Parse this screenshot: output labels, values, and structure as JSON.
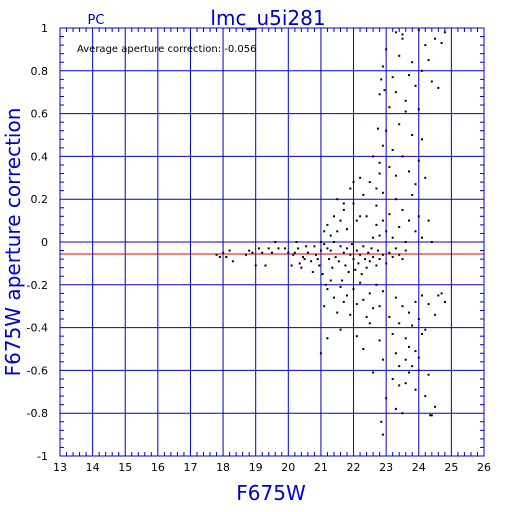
{
  "chart_data": {
    "type": "scatter",
    "title": "lmc_u5i281",
    "camera": "PC",
    "xlabel": "F675W",
    "ylabel": "F675W aperture correction",
    "annotation": "Average aperture correction: -0.056",
    "xlim": [
      13,
      26
    ],
    "ylim": [
      -1,
      1
    ],
    "xticks": [
      13,
      14,
      15,
      16,
      17,
      18,
      19,
      20,
      21,
      22,
      23,
      24,
      25,
      26
    ],
    "yticks": [
      -1,
      -0.8,
      -0.6,
      -0.4,
      -0.2,
      0,
      0.2,
      0.4,
      0.6,
      0.8,
      1
    ],
    "xtick_labels": [
      "13",
      "14",
      "15",
      "16",
      "17",
      "18",
      "19",
      "20",
      "21",
      "22",
      "23",
      "24",
      "25",
      "26"
    ],
    "ytick_labels": [
      "-1",
      "-0.8",
      "-0.6",
      "-0.4",
      "-0.2",
      "0",
      "0.2",
      "0.4",
      "0.6",
      "0.8",
      "1"
    ],
    "grid": true,
    "reference_line_y": -0.056,
    "colors": {
      "axes": "#0000cc",
      "points": "#000000",
      "reference_line": "#dd0000",
      "background": "#ffffff"
    },
    "points": [
      [
        17.8,
        -0.06
      ],
      [
        17.9,
        -0.07
      ],
      [
        18.0,
        -0.05
      ],
      [
        18.1,
        -0.07
      ],
      [
        18.3,
        -0.09
      ],
      [
        18.2,
        -0.04
      ],
      [
        18.7,
        -0.06
      ],
      [
        18.8,
        -0.04
      ],
      [
        18.9,
        -0.05
      ],
      [
        19.0,
        -0.11
      ],
      [
        19.1,
        -0.03
      ],
      [
        19.2,
        -0.05
      ],
      [
        19.3,
        -0.11
      ],
      [
        19.4,
        -0.03
      ],
      [
        19.5,
        -0.05
      ],
      [
        19.6,
        0.0
      ],
      [
        19.7,
        -0.03
      ],
      [
        19.9,
        -0.03
      ],
      [
        20.0,
        -0.05
      ],
      [
        20.1,
        -0.11
      ],
      [
        20.15,
        -0.06
      ],
      [
        20.2,
        -0.05
      ],
      [
        20.25,
        0.0
      ],
      [
        20.3,
        -0.03
      ],
      [
        20.35,
        -0.1
      ],
      [
        20.4,
        -0.12
      ],
      [
        20.45,
        -0.07
      ],
      [
        20.5,
        -0.08
      ],
      [
        20.55,
        -0.02
      ],
      [
        20.6,
        -0.05
      ],
      [
        20.7,
        -0.09
      ],
      [
        20.75,
        -0.14
      ],
      [
        20.8,
        -0.02
      ],
      [
        20.85,
        -0.06
      ],
      [
        20.9,
        -0.08
      ],
      [
        20.95,
        -0.11
      ],
      [
        21.0,
        -0.04
      ],
      [
        21.05,
        -0.15
      ],
      [
        21.1,
        -0.01
      ],
      [
        21.15,
        -0.2
      ],
      [
        21.2,
        -0.03
      ],
      [
        21.25,
        -0.08
      ],
      [
        21.3,
        -0.04
      ],
      [
        21.35,
        -0.12
      ],
      [
        21.4,
        0.0
      ],
      [
        21.45,
        -0.07
      ],
      [
        21.5,
        0.05
      ],
      [
        21.55,
        -0.09
      ],
      [
        21.6,
        -0.02
      ],
      [
        21.65,
        -0.18
      ],
      [
        21.7,
        -0.05
      ],
      [
        21.75,
        -0.11
      ],
      [
        21.8,
        -0.03
      ],
      [
        21.85,
        -0.14
      ],
      [
        21.9,
        -0.06
      ],
      [
        21.95,
        -0.01
      ],
      [
        22.0,
        -0.08
      ],
      [
        22.05,
        -0.13
      ],
      [
        22.1,
        -0.04
      ],
      [
        22.15,
        -0.1
      ],
      [
        22.2,
        -0.06
      ],
      [
        22.25,
        -0.15
      ],
      [
        22.3,
        -0.02
      ],
      [
        22.35,
        -0.08
      ],
      [
        22.4,
        -0.12
      ],
      [
        22.45,
        -0.05
      ],
      [
        22.5,
        -0.09
      ],
      [
        22.55,
        -0.03
      ],
      [
        22.6,
        -0.07
      ],
      [
        22.7,
        -0.11
      ],
      [
        22.75,
        -0.04
      ],
      [
        22.8,
        -0.08
      ],
      [
        22.9,
        -0.06
      ],
      [
        23.0,
        -0.1
      ],
      [
        23.1,
        -0.05
      ],
      [
        23.2,
        -0.07
      ],
      [
        23.3,
        -0.03
      ],
      [
        23.4,
        -0.06
      ],
      [
        23.5,
        -0.08
      ],
      [
        23.6,
        -0.04
      ],
      [
        21.1,
        -0.3
      ],
      [
        21.2,
        -0.22
      ],
      [
        21.3,
        -0.18
      ],
      [
        21.4,
        -0.26
      ],
      [
        21.5,
        -0.33
      ],
      [
        21.6,
        -0.21
      ],
      [
        21.7,
        -0.28
      ],
      [
        21.8,
        -0.25
      ],
      [
        21.9,
        -0.34
      ],
      [
        22.0,
        -0.22
      ],
      [
        22.1,
        -0.29
      ],
      [
        22.2,
        -0.19
      ],
      [
        22.3,
        -0.27
      ],
      [
        22.4,
        -0.35
      ],
      [
        22.5,
        -0.24
      ],
      [
        22.6,
        -0.31
      ],
      [
        22.7,
        -0.2
      ],
      [
        22.8,
        -0.3
      ],
      [
        22.9,
        -0.23
      ],
      [
        21.0,
        -0.52
      ],
      [
        21.2,
        -0.45
      ],
      [
        21.6,
        -0.41
      ],
      [
        22.1,
        -0.44
      ],
      [
        22.3,
        -0.5
      ],
      [
        22.5,
        -0.38
      ],
      [
        22.6,
        -0.61
      ],
      [
        22.8,
        -0.46
      ],
      [
        22.9,
        -0.55
      ],
      [
        22.85,
        -0.84
      ],
      [
        22.9,
        -0.9
      ],
      [
        23.0,
        -0.73
      ],
      [
        23.2,
        -0.64
      ],
      [
        23.3,
        -0.78
      ],
      [
        23.4,
        -0.67
      ],
      [
        23.5,
        -0.8
      ],
      [
        23.6,
        -0.66
      ],
      [
        23.7,
        -0.49
      ],
      [
        23.8,
        -0.58
      ],
      [
        23.9,
        -0.69
      ],
      [
        24.0,
        -0.54
      ],
      [
        24.1,
        -0.43
      ],
      [
        24.2,
        -0.72
      ],
      [
        24.3,
        -0.62
      ],
      [
        24.35,
        -0.81
      ],
      [
        24.4,
        -0.81
      ],
      [
        24.5,
        -0.77
      ],
      [
        23.1,
        -0.35
      ],
      [
        23.2,
        -0.43
      ],
      [
        23.3,
        -0.26
      ],
      [
        23.4,
        -0.38
      ],
      [
        23.5,
        -0.3
      ],
      [
        23.6,
        -0.45
      ],
      [
        23.7,
        -0.33
      ],
      [
        23.8,
        -0.39
      ],
      [
        23.9,
        -0.28
      ],
      [
        24.0,
        -0.36
      ],
      [
        24.1,
        -0.25
      ],
      [
        24.2,
        -0.41
      ],
      [
        24.3,
        -0.29
      ],
      [
        24.5,
        -0.34
      ],
      [
        24.6,
        -0.25
      ],
      [
        24.7,
        -0.24
      ],
      [
        24.8,
        -0.28
      ],
      [
        23.3,
        -0.52
      ],
      [
        23.4,
        -0.58
      ],
      [
        23.6,
        -0.55
      ],
      [
        23.7,
        -0.61
      ],
      [
        23.9,
        -0.51
      ],
      [
        24.0,
        -0.6
      ],
      [
        21.0,
        0.0
      ],
      [
        21.1,
        0.05
      ],
      [
        21.2,
        0.08
      ],
      [
        21.3,
        0.03
      ],
      [
        21.4,
        0.12
      ],
      [
        21.5,
        0.2
      ],
      [
        21.6,
        0.1
      ],
      [
        21.7,
        0.15
      ],
      [
        21.8,
        0.06
      ],
      [
        21.9,
        0.25
      ],
      [
        22.0,
        0.18
      ],
      [
        22.1,
        0.1
      ],
      [
        22.2,
        0.3
      ],
      [
        22.3,
        0.22
      ],
      [
        22.4,
        0.12
      ],
      [
        22.5,
        0.28
      ],
      [
        22.6,
        0.4
      ],
      [
        22.7,
        0.17
      ],
      [
        22.8,
        0.32
      ],
      [
        22.9,
        0.23
      ],
      [
        21.7,
        0.18
      ],
      [
        22.0,
        0.28
      ],
      [
        22.2,
        0.12
      ],
      [
        22.6,
        0.02
      ],
      [
        22.7,
        0.08
      ],
      [
        22.8,
        0.03
      ],
      [
        22.9,
        0.1
      ],
      [
        23.0,
        0.05
      ],
      [
        23.1,
        0.13
      ],
      [
        23.2,
        0.02
      ],
      [
        23.3,
        0.2
      ],
      [
        23.4,
        0.07
      ],
      [
        23.5,
        0.15
      ],
      [
        23.6,
        0.0
      ],
      [
        23.7,
        0.1
      ],
      [
        23.8,
        0.22
      ],
      [
        23.9,
        0.05
      ],
      [
        24.0,
        0.12
      ],
      [
        24.1,
        0.02
      ],
      [
        24.3,
        0.1
      ],
      [
        24.4,
        0.0
      ],
      [
        22.7,
        0.25
      ],
      [
        22.8,
        0.37
      ],
      [
        22.9,
        0.45
      ],
      [
        23.0,
        0.52
      ],
      [
        23.1,
        0.35
      ],
      [
        23.2,
        0.43
      ],
      [
        23.3,
        0.31
      ],
      [
        23.4,
        0.55
      ],
      [
        23.5,
        0.4
      ],
      [
        23.6,
        0.61
      ],
      [
        23.7,
        0.33
      ],
      [
        23.8,
        0.5
      ],
      [
        23.9,
        0.27
      ],
      [
        24.0,
        0.38
      ],
      [
        24.1,
        0.48
      ],
      [
        24.2,
        0.3
      ],
      [
        22.75,
        0.53
      ],
      [
        22.8,
        0.69
      ],
      [
        22.85,
        0.76
      ],
      [
        22.9,
        0.82
      ],
      [
        22.95,
        0.71
      ],
      [
        23.0,
        0.9
      ],
      [
        23.1,
        0.63
      ],
      [
        23.2,
        0.77
      ],
      [
        23.3,
        0.7
      ],
      [
        23.4,
        0.87
      ],
      [
        23.5,
        0.95
      ],
      [
        23.6,
        0.66
      ],
      [
        23.7,
        0.78
      ],
      [
        23.8,
        0.84
      ],
      [
        23.9,
        0.73
      ],
      [
        24.0,
        0.62
      ],
      [
        24.1,
        0.8
      ],
      [
        24.2,
        0.92
      ],
      [
        24.3,
        0.85
      ],
      [
        24.4,
        0.75
      ],
      [
        24.6,
        0.72
      ],
      [
        24.7,
        0.93
      ],
      [
        24.8,
        0.98
      ],
      [
        23.3,
        0.98
      ],
      [
        23.5,
        0.97
      ],
      [
        24.0,
        0.99
      ],
      [
        24.5,
        0.95
      ]
    ]
  }
}
